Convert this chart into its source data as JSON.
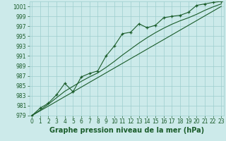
{
  "xlabel": "Graphe pression niveau de la mer (hPa)",
  "background_color": "#cceaea",
  "grid_color": "#9ecece",
  "line_color": "#1a5c2a",
  "x_values": [
    0,
    1,
    2,
    3,
    4,
    5,
    6,
    7,
    8,
    9,
    10,
    11,
    12,
    13,
    14,
    15,
    16,
    17,
    18,
    19,
    20,
    21,
    22,
    23
  ],
  "y_main": [
    979.0,
    980.5,
    981.5,
    983.2,
    985.5,
    983.8,
    986.8,
    987.5,
    988.0,
    991.0,
    993.0,
    995.5,
    995.8,
    997.5,
    996.7,
    997.2,
    998.7,
    999.0,
    999.2,
    999.8,
    1001.2,
    1001.5,
    1001.8,
    1002.0
  ],
  "y_linear": [
    979.0,
    979.96,
    980.91,
    981.87,
    982.83,
    983.78,
    984.74,
    985.7,
    986.65,
    987.61,
    988.57,
    989.52,
    990.48,
    991.43,
    992.39,
    993.35,
    994.3,
    995.26,
    996.22,
    997.17,
    998.13,
    999.09,
    1000.04,
    1001.0
  ],
  "y_smooth": [
    979.0,
    980.1,
    981.3,
    982.6,
    983.9,
    984.9,
    985.9,
    986.8,
    987.6,
    988.7,
    989.9,
    991.2,
    992.4,
    993.6,
    994.7,
    995.7,
    996.6,
    997.4,
    998.1,
    998.7,
    999.4,
    1000.2,
    1000.9,
    1001.5
  ],
  "ylim_min": 979,
  "ylim_max": 1002,
  "yticks": [
    979,
    981,
    983,
    985,
    987,
    989,
    991,
    993,
    995,
    997,
    999,
    1001
  ],
  "xticks": [
    0,
    1,
    2,
    3,
    4,
    5,
    6,
    7,
    8,
    9,
    10,
    11,
    12,
    13,
    14,
    15,
    16,
    17,
    18,
    19,
    20,
    21,
    22,
    23
  ],
  "tick_fontsize": 5.5,
  "xlabel_fontsize": 7.0
}
